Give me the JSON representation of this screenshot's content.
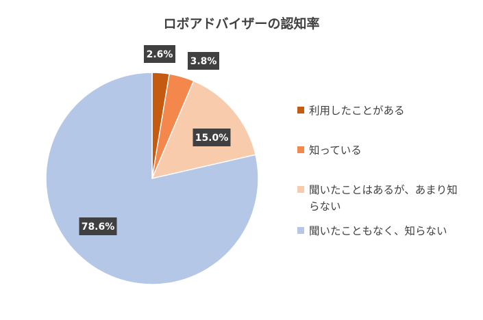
{
  "chart_data": {
    "type": "pie",
    "title": "ロボアドバイザーの認知率",
    "categories": [
      "利用したことがある",
      "知っている",
      "聞いたことはあるが、あまり知らない",
      "聞いたこともなく、知らない"
    ],
    "values": [
      2.6,
      3.8,
      15.0,
      78.6
    ],
    "data_labels": [
      "2.6%",
      "3.8%",
      "15.0%",
      "78.6%"
    ],
    "colors": [
      "#C55A11",
      "#F4874B",
      "#F8CBAD",
      "#B4C7E7"
    ],
    "legend_position": "right",
    "start_angle": "12 o'clock",
    "direction": "clockwise"
  },
  "legend": {
    "items": [
      {
        "label": "利用したことがある",
        "color": "#C55A11"
      },
      {
        "label": "知っている",
        "color": "#F4874B"
      },
      {
        "label": "聞いたことはあるが、あまり知らない",
        "color": "#F8CBAD"
      },
      {
        "label": "聞いたこともなく、知らない",
        "color": "#B4C7E7"
      }
    ]
  }
}
